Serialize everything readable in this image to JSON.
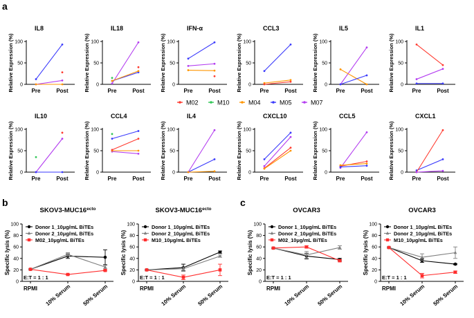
{
  "panel_labels": {
    "a": "a",
    "b": "b",
    "c": "c"
  },
  "colors": {
    "M02": "#ff3b30",
    "M10": "#34c759",
    "M04": "#ff9500",
    "M05": "#3a3afc",
    "M07": "#b33cf0",
    "donor1": "#000000",
    "donor2": "#7f7f7f",
    "patient": "#ff2d2d"
  },
  "chart_data": [
    {
      "type": "line",
      "panel": "a",
      "ylabel": "Relative Expression (%)",
      "ylim": [
        0,
        100
      ],
      "yticks": [
        0,
        50,
        100
      ],
      "categories": [
        "Pre",
        "Post"
      ],
      "legend": [
        {
          "key": "M02",
          "label": "M02",
          "color": "#ff3b30"
        },
        {
          "key": "M10",
          "label": "M10",
          "color": "#34c759"
        },
        {
          "key": "M04",
          "label": "M04",
          "color": "#ff9500"
        },
        {
          "key": "M05",
          "label": "M05",
          "color": "#3a3afc"
        },
        {
          "key": "M07",
          "label": "M07",
          "color": "#b33cf0"
        }
      ],
      "subplots": [
        {
          "title": "IL8",
          "series": [
            {
              "key": "M05",
              "values": [
                12,
                93
              ]
            },
            {
              "key": "M07",
              "values": [
                0,
                9
              ]
            },
            {
              "key": "M02",
              "values": [
                null,
                28
              ]
            },
            {
              "key": "M04",
              "values": [
                0,
                0
              ]
            }
          ]
        },
        {
          "title": "IL18",
          "series": [
            {
              "key": "M07",
              "values": [
                2,
                98
              ]
            },
            {
              "key": "M05",
              "values": [
                8,
                28
              ]
            },
            {
              "key": "M04",
              "values": [
                8,
                31
              ]
            },
            {
              "key": "M10",
              "values": [
                15,
                null
              ]
            },
            {
              "key": "M02",
              "values": [
                null,
                40
              ]
            }
          ]
        },
        {
          "title": "IFN-α",
          "series": [
            {
              "key": "M05",
              "values": [
                60,
                98
              ]
            },
            {
              "key": "M07",
              "values": [
                43,
                48
              ]
            },
            {
              "key": "M04",
              "values": [
                33,
                32
              ]
            },
            {
              "key": "M02",
              "values": [
                null,
                19
              ]
            }
          ]
        },
        {
          "title": "CCL3",
          "series": [
            {
              "key": "M05",
              "values": [
                31,
                93
              ]
            },
            {
              "key": "M04",
              "values": [
                3,
                10
              ]
            },
            {
              "key": "M02",
              "values": [
                0,
                6
              ]
            }
          ]
        },
        {
          "title": "IL5",
          "series": [
            {
              "key": "M07",
              "values": [
                0,
                86
              ]
            },
            {
              "key": "M04",
              "values": [
                35,
                0
              ]
            },
            {
              "key": "M05",
              "values": [
                0,
                21
              ]
            }
          ]
        },
        {
          "title": "IL1",
          "series": [
            {
              "key": "M02",
              "values": [
                93,
                45
              ]
            },
            {
              "key": "M07",
              "values": [
                12,
                36
              ]
            },
            {
              "key": "M05",
              "values": [
                2,
                2
              ]
            }
          ]
        },
        {
          "title": "IL10",
          "series": [
            {
              "key": "M07",
              "values": [
                0,
                78
              ]
            },
            {
              "key": "M02",
              "values": [
                null,
                92
              ]
            },
            {
              "key": "M10",
              "values": [
                35,
                null
              ]
            },
            {
              "key": "M05",
              "values": [
                0,
                0
              ]
            }
          ]
        },
        {
          "title": "CCL4",
          "series": [
            {
              "key": "M05",
              "values": [
                78,
                96
              ]
            },
            {
              "key": "M10",
              "values": [
                89,
                null
              ]
            },
            {
              "key": "M07",
              "values": [
                48,
                43
              ]
            },
            {
              "key": "M04",
              "values": [
                50,
                50
              ]
            },
            {
              "key": "M02",
              "values": [
                52,
                78
              ]
            }
          ]
        },
        {
          "title": "IL4",
          "series": [
            {
              "key": "M07",
              "values": [
                0,
                98
              ]
            },
            {
              "key": "M05",
              "values": [
                0,
                30
              ]
            },
            {
              "key": "M04",
              "values": [
                0,
                2
              ]
            }
          ]
        },
        {
          "title": "CXCL10",
          "series": [
            {
              "key": "M05",
              "values": [
                30,
                92
              ]
            },
            {
              "key": "M07",
              "values": [
                14,
                82
              ]
            },
            {
              "key": "M02",
              "values": [
                9,
                57
              ]
            },
            {
              "key": "M04",
              "values": [
                8,
                50
              ]
            }
          ]
        },
        {
          "title": "CCL5",
          "series": [
            {
              "key": "M07",
              "values": [
                10,
                93
              ]
            },
            {
              "key": "M02",
              "values": [
                14,
                25
              ]
            },
            {
              "key": "M04",
              "values": [
                16,
                20
              ]
            },
            {
              "key": "M05",
              "values": [
                12,
                15
              ]
            }
          ]
        },
        {
          "title": "CXCL1",
          "series": [
            {
              "key": "M05",
              "values": [
                4,
                30
              ]
            },
            {
              "key": "M02",
              "values": [
                0,
                98
              ]
            },
            {
              "key": "M07",
              "values": [
                0,
                3
              ]
            }
          ]
        }
      ]
    },
    {
      "type": "line",
      "panel": "b",
      "title": "SKOV3-MUC16",
      "title_superscript": "ecto",
      "ylabel": "Specific lysis (%)",
      "ylim": [
        0,
        100
      ],
      "yticks": [
        0,
        20,
        40,
        60,
        80,
        100
      ],
      "categories": [
        "RPMI",
        "10% Serum",
        "50% Serum"
      ],
      "annotation": "E:T = 1 : 1",
      "series": [
        {
          "name": "Donor 1_10μg/mL BiTEs",
          "color": "#000000",
          "marker": "circle",
          "values": [
            21,
            44,
            42
          ],
          "err": [
            1,
            4,
            13
          ]
        },
        {
          "name": "Donor 2_10μg/mL BiTEs",
          "color": "#7f7f7f",
          "marker": "triangle",
          "values": [
            21,
            47,
            25
          ],
          "err": [
            1,
            3,
            3
          ]
        },
        {
          "name": "M02_10μg/mL BiTEs",
          "color": "#ff2d2d",
          "marker": "square",
          "values": [
            21,
            12,
            19
          ],
          "err": [
            0,
            1,
            1
          ]
        }
      ]
    },
    {
      "type": "line",
      "panel": "b",
      "title": "SKOV3-MUC16",
      "title_superscript": "ecto",
      "ylabel": "Specific lysis (%)",
      "ylim": [
        0,
        100
      ],
      "yticks": [
        0,
        20,
        40,
        60,
        80,
        100
      ],
      "categories": [
        "RPMI",
        "10% Serum",
        "50% Serum"
      ],
      "annotation": "E:T = 1 : 1",
      "series": [
        {
          "name": "Donor 1_10μg/mL BiTEs",
          "color": "#000000",
          "marker": "circle",
          "values": [
            20,
            24,
            51
          ],
          "err": [
            1,
            6,
            2
          ]
        },
        {
          "name": "Donor 2_10μg/mL BiTEs",
          "color": "#7f7f7f",
          "marker": "triangle",
          "values": [
            20,
            22,
            44
          ],
          "err": [
            1,
            3,
            2
          ]
        },
        {
          "name": "M10_10μg/mL BiTEs",
          "color": "#ff2d2d",
          "marker": "square",
          "values": [
            20,
            7,
            20
          ],
          "err": [
            0,
            4,
            10
          ]
        }
      ]
    },
    {
      "type": "line",
      "panel": "c",
      "title": "OVCAR3",
      "ylabel": "Specific lysis (%)",
      "ylim": [
        0,
        100
      ],
      "yticks": [
        0,
        20,
        40,
        60,
        80,
        100
      ],
      "categories": [
        "RPMI",
        "10% Serum",
        "50% Serum"
      ],
      "annotation": "E:T = 1 : 1",
      "series": [
        {
          "name": "Donor 1_10μg/mL BiTEs",
          "color": "#000000",
          "marker": "circle",
          "values": [
            58,
            44,
            38
          ],
          "err": [
            1,
            5,
            2
          ]
        },
        {
          "name": "Donor 2_10μg/mL BiTEs",
          "color": "#7f7f7f",
          "marker": "triangle",
          "values": [
            58,
            46,
            59
          ],
          "err": [
            1,
            6,
            3
          ]
        },
        {
          "name": "M02_10μg/mL BiTEs",
          "color": "#ff2d2d",
          "marker": "square",
          "values": [
            58,
            60,
            36
          ],
          "err": [
            0,
            2,
            2
          ]
        }
      ]
    },
    {
      "type": "line",
      "panel": "c",
      "title": "OVCAR3",
      "ylabel": "Specific lysis (%)",
      "ylim": [
        0,
        100
      ],
      "yticks": [
        0,
        20,
        40,
        60,
        80,
        100
      ],
      "categories": [
        "RPMI",
        "10% Serum",
        "50% Serum"
      ],
      "annotation": "E:T = 1 : 1",
      "series": [
        {
          "name": "Donor 1_10μg/mL BiTEs",
          "color": "#000000",
          "marker": "circle",
          "values": [
            59,
            36,
            30
          ],
          "err": [
            1,
            3,
            1
          ]
        },
        {
          "name": "Donor 2_10μg/mL BiTEs",
          "color": "#7f7f7f",
          "marker": "triangle",
          "values": [
            59,
            42,
            50
          ],
          "err": [
            1,
            6,
            10
          ]
        },
        {
          "name": "M10_10μg/mL BiTEs",
          "color": "#ff2d2d",
          "marker": "square",
          "values": [
            59,
            10,
            16
          ],
          "err": [
            0,
            4,
            2
          ]
        }
      ]
    }
  ]
}
